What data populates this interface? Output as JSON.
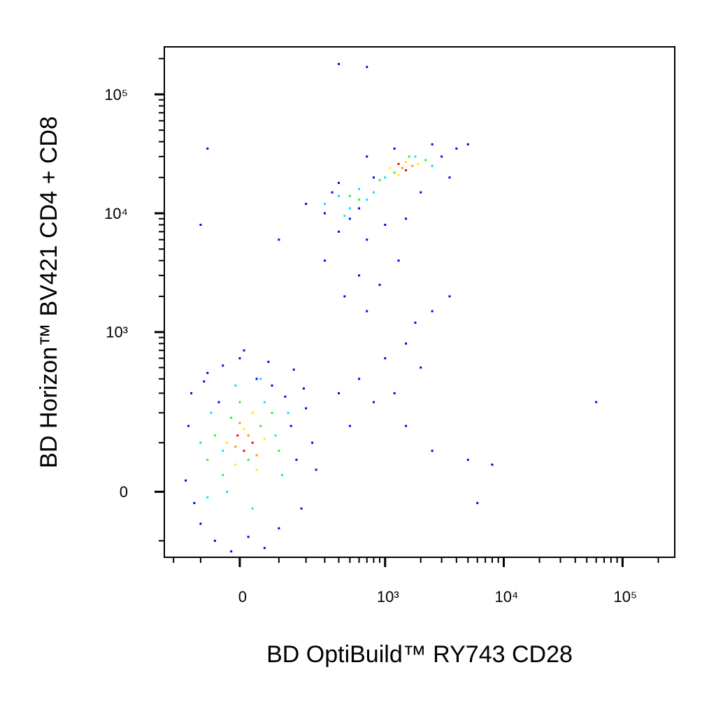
{
  "chart_data": {
    "type": "scatter",
    "xlabel": "BD OptiBuild™ RY743 CD28",
    "ylabel": "BD Horizon™ BV421 CD4 + CD8",
    "xscale": "biexponential",
    "yscale": "biexponential",
    "xlim": [
      -245,
      275000
    ],
    "ylim": [
      -149,
      251000
    ],
    "xticks": [
      0,
      {
        "value": 1000,
        "label": "10³"
      },
      {
        "value": 10000,
        "label": "10⁴"
      },
      {
        "value": 100000,
        "label": "10⁵"
      }
    ],
    "yticks": [
      0,
      {
        "value": 1000,
        "label": "10³"
      },
      {
        "value": 10000,
        "label": "10⁴"
      },
      {
        "value": 100000,
        "label": "10⁵"
      }
    ],
    "xminorticks": [
      -200,
      -100,
      100,
      200,
      300,
      400,
      500,
      600,
      700,
      800,
      900,
      2000,
      3000,
      4000,
      5000,
      6000,
      7000,
      8000,
      9000,
      20000,
      30000,
      40000,
      50000,
      60000,
      70000,
      80000,
      90000,
      200000
    ],
    "yminorticks": [
      -100,
      100,
      200,
      300,
      400,
      500,
      600,
      700,
      800,
      900,
      2000,
      3000,
      4000,
      5000,
      6000,
      7000,
      8000,
      9000,
      20000,
      30000,
      40000,
      50000,
      60000,
      70000,
      80000,
      90000,
      200000
    ],
    "series": [
      {
        "color": "#0000ff",
        "x": [
          -150,
          -130,
          -100,
          -80,
          -60,
          -40,
          -20,
          0,
          20,
          40,
          60,
          80,
          100,
          120,
          140,
          160,
          180,
          200,
          230,
          -140,
          -120,
          -90,
          10,
          70,
          150,
          -50,
          250,
          190,
          400,
          500,
          600,
          800,
          1000,
          1200,
          1500,
          2000,
          700,
          900,
          1300,
          600,
          450,
          2500,
          3500,
          1800,
          5000,
          8000,
          60000,
          6000,
          2500,
          1500,
          -100,
          100,
          200,
          300,
          350,
          400,
          500,
          700,
          800,
          1000,
          2000,
          3000,
          4000,
          5000,
          3500,
          2500,
          1200,
          700,
          400,
          300,
          600,
          1500,
          400,
          700,
          -80
        ],
        "values": [
          20,
          300,
          -60,
          450,
          -100,
          520,
          -130,
          600,
          -90,
          400,
          -120,
          350,
          -70,
          280,
          150,
          60,
          -30,
          220,
          100,
          150,
          -20,
          380,
          700,
          560,
          480,
          250,
          40,
          330,
          300,
          150,
          400,
          250,
          600,
          300,
          800,
          500,
          1500,
          2500,
          4000,
          3000,
          2000,
          1500,
          2000,
          1200,
          60,
          50,
          250,
          -20,
          80,
          150,
          8000,
          6000,
          12000,
          10000,
          15000,
          7000,
          9000,
          6000,
          20000,
          8000,
          15000,
          30000,
          35000,
          38000,
          20000,
          38000,
          35000,
          30000,
          18000,
          4000,
          11000,
          9000,
          180000,
          170000,
          35000
        ]
      },
      {
        "color": "#00e5ff",
        "x": [
          -100,
          -70,
          -30,
          -10,
          30,
          60,
          90,
          110,
          -80,
          50,
          130,
          -40,
          300,
          400,
          500,
          600,
          800,
          1000,
          1800,
          2500,
          450,
          700
        ],
        "values": [
          100,
          200,
          0,
          350,
          -30,
          250,
          120,
          30,
          -10,
          400,
          200,
          80,
          12000,
          14000,
          11000,
          16000,
          15000,
          20000,
          30000,
          25000,
          9500,
          13000
        ]
      },
      {
        "color": "#33ee33",
        "x": [
          -60,
          -20,
          20,
          50,
          80,
          -40,
          0,
          100,
          -80,
          500,
          600,
          900,
          1200,
          2200,
          1600
        ],
        "values": [
          120,
          180,
          60,
          150,
          200,
          30,
          250,
          80,
          60,
          14000,
          13000,
          19000,
          22000,
          28000,
          30000
        ]
      },
      {
        "color": "#ffee00",
        "x": [
          -30,
          10,
          40,
          60,
          -10,
          30,
          1100,
          1500,
          1900,
          1300
        ],
        "values": [
          100,
          140,
          40,
          110,
          50,
          200,
          24000,
          27000,
          26000,
          21000
        ]
      },
      {
        "color": "#ff9900",
        "x": [
          -10,
          20,
          40,
          0,
          1400,
          1700
        ],
        "values": [
          90,
          120,
          70,
          160,
          24000,
          25000
        ]
      },
      {
        "color": "#ff0000",
        "x": [
          10,
          30,
          -5,
          1500,
          1300
        ],
        "values": [
          80,
          100,
          120,
          23000,
          26000
        ]
      }
    ]
  }
}
